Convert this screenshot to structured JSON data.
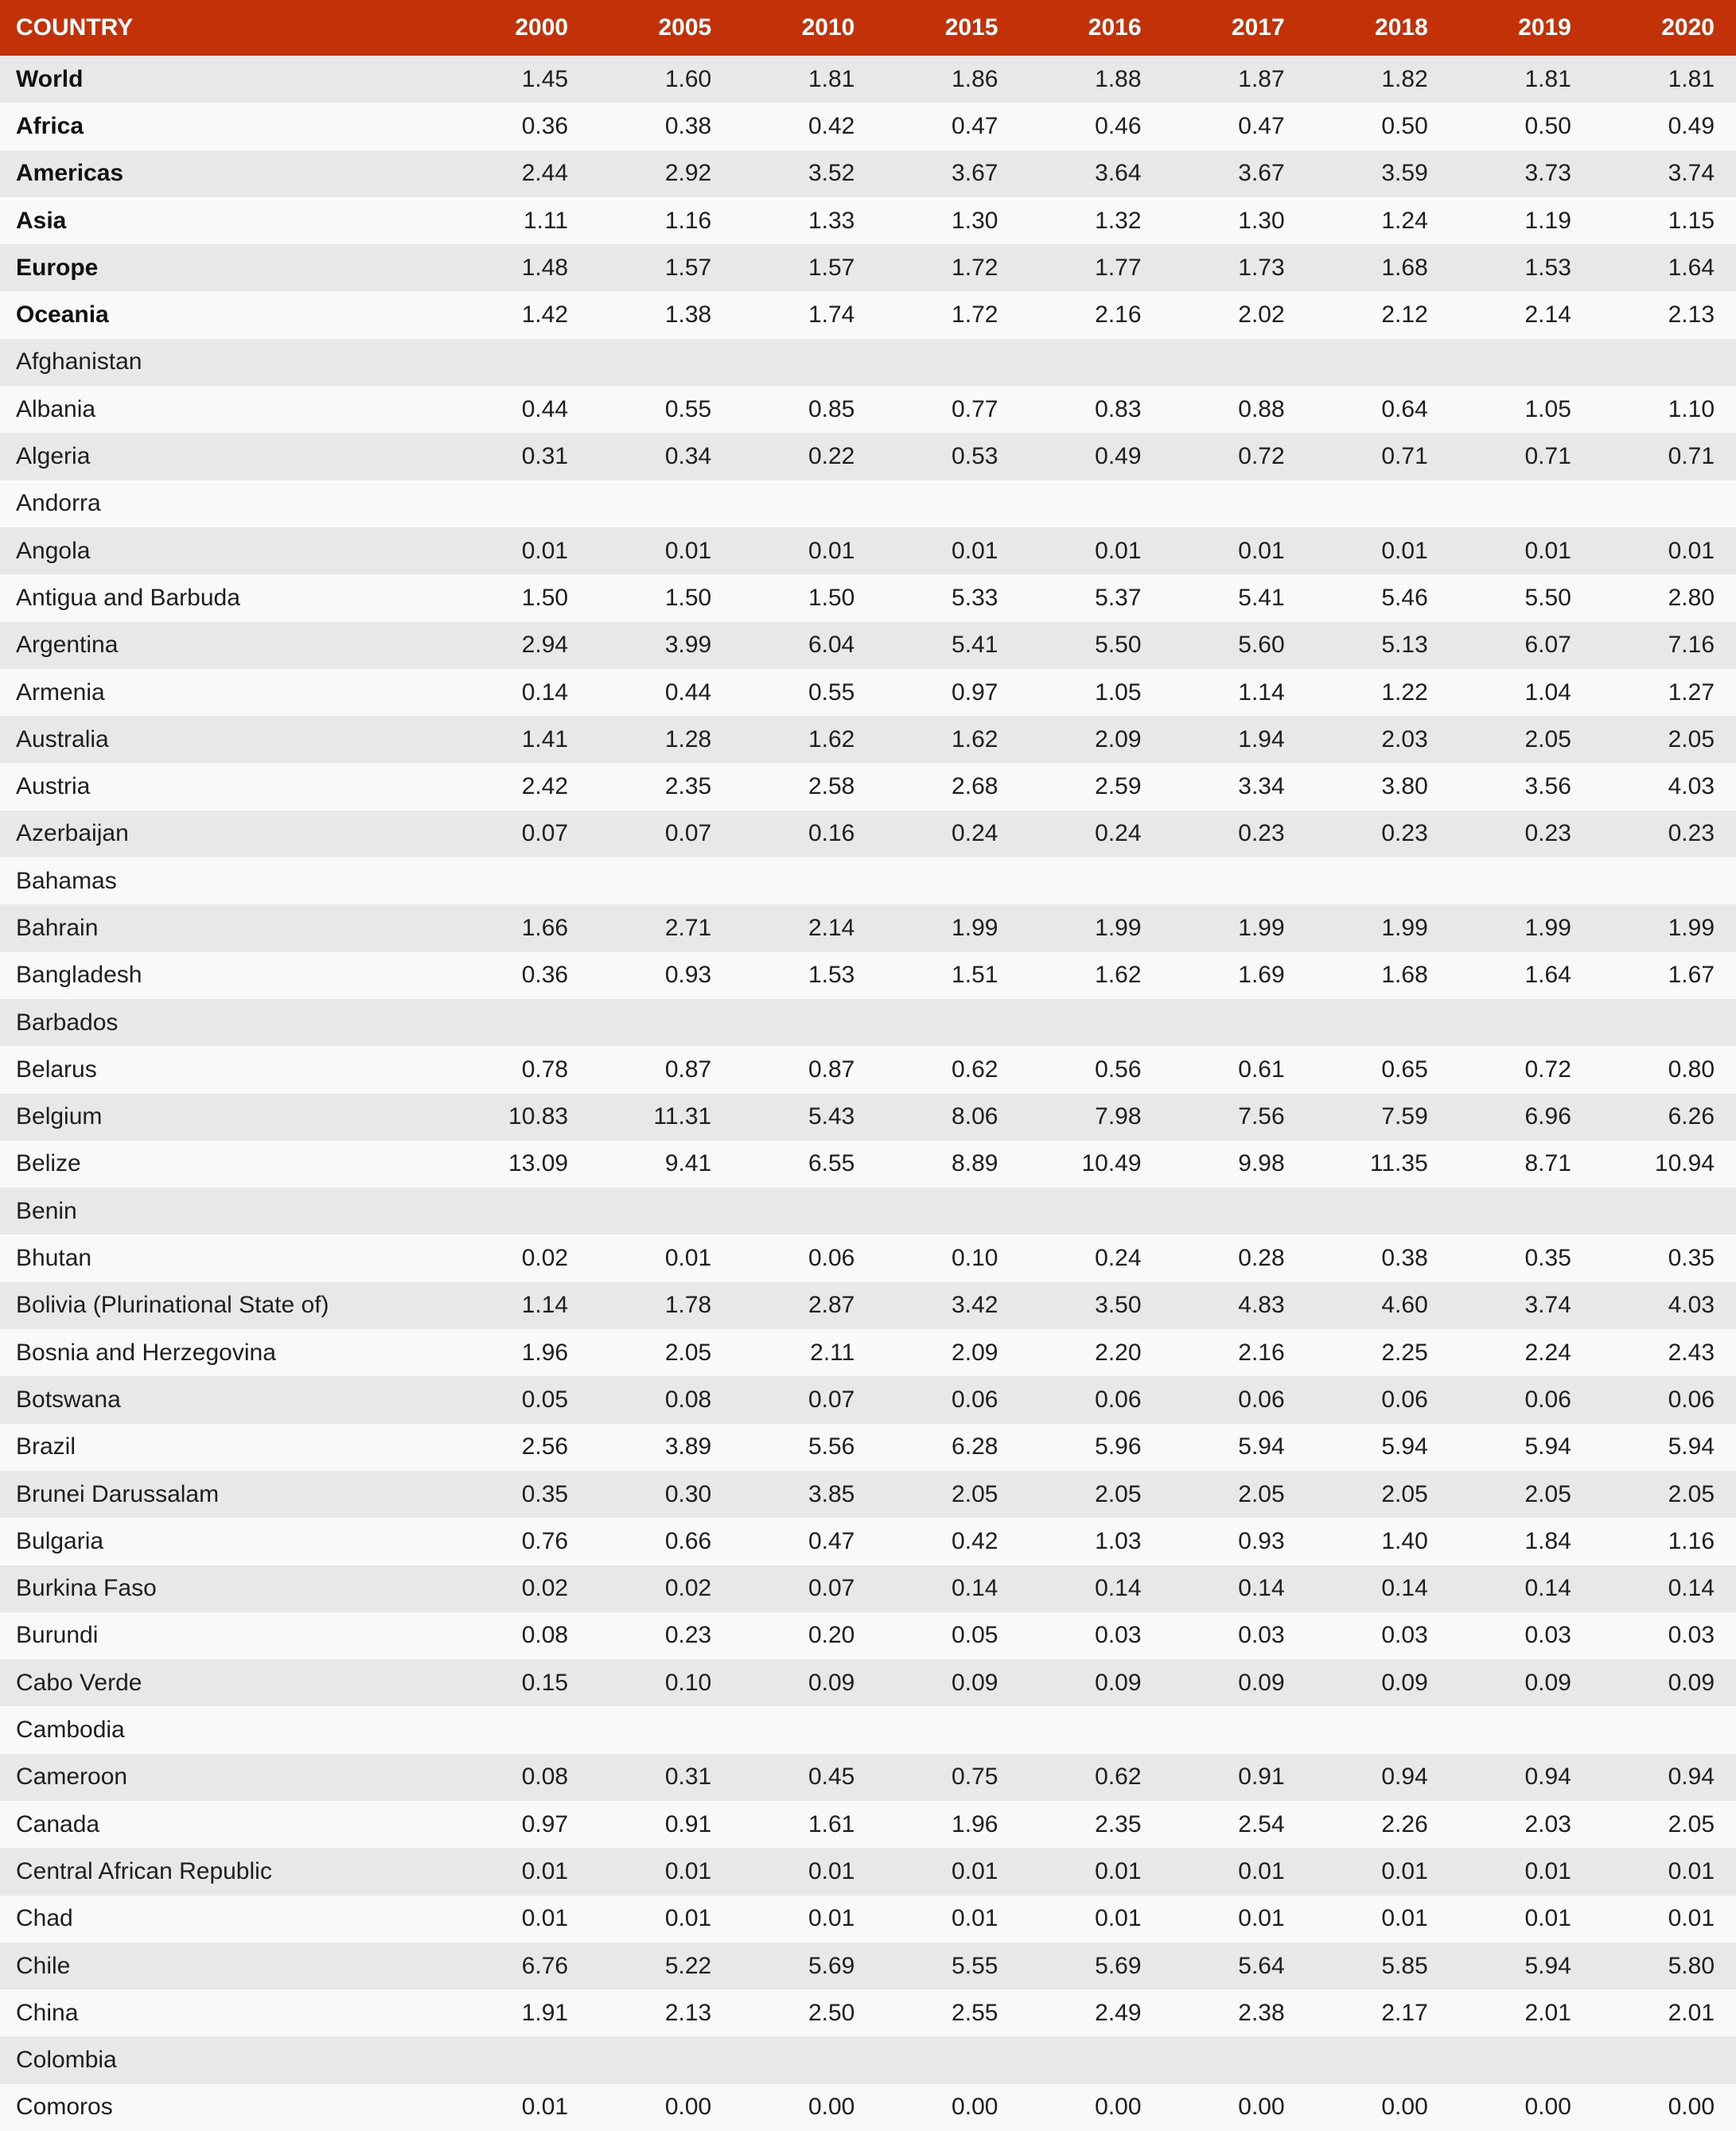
{
  "colors": {
    "header_bg": "#c23108",
    "header_text": "#ffffff",
    "row_stripe_gray": "#e8e8e8",
    "row_stripe_light": "#f9f9f9",
    "body_text": "#1e1e1e"
  },
  "chart_data": {
    "type": "table",
    "columns": [
      "COUNTRY",
      "2000",
      "2005",
      "2010",
      "2015",
      "2016",
      "2017",
      "2018",
      "2019",
      "2020"
    ],
    "rows": [
      {
        "name": "World",
        "bold": true,
        "values": [
          "1.45",
          "1.60",
          "1.81",
          "1.86",
          "1.88",
          "1.87",
          "1.82",
          "1.81",
          "1.81"
        ]
      },
      {
        "name": "Africa",
        "bold": true,
        "values": [
          "0.36",
          "0.38",
          "0.42",
          "0.47",
          "0.46",
          "0.47",
          "0.50",
          "0.50",
          "0.49"
        ]
      },
      {
        "name": "Americas",
        "bold": true,
        "values": [
          "2.44",
          "2.92",
          "3.52",
          "3.67",
          "3.64",
          "3.67",
          "3.59",
          "3.73",
          "3.74"
        ]
      },
      {
        "name": "Asia",
        "bold": true,
        "values": [
          "1.11",
          "1.16",
          "1.33",
          "1.30",
          "1.32",
          "1.30",
          "1.24",
          "1.19",
          "1.15"
        ]
      },
      {
        "name": "Europe",
        "bold": true,
        "values": [
          "1.48",
          "1.57",
          "1.57",
          "1.72",
          "1.77",
          "1.73",
          "1.68",
          "1.53",
          "1.64"
        ]
      },
      {
        "name": "Oceania",
        "bold": true,
        "values": [
          "1.42",
          "1.38",
          "1.74",
          "1.72",
          "2.16",
          "2.02",
          "2.12",
          "2.14",
          "2.13"
        ]
      },
      {
        "name": "Afghanistan",
        "bold": false,
        "values": [
          "",
          "",
          "",
          "",
          "",
          "",
          "",
          "",
          ""
        ]
      },
      {
        "name": "Albania",
        "bold": false,
        "values": [
          "0.44",
          "0.55",
          "0.85",
          "0.77",
          "0.83",
          "0.88",
          "0.64",
          "1.05",
          "1.10"
        ]
      },
      {
        "name": "Algeria",
        "bold": false,
        "values": [
          "0.31",
          "0.34",
          "0.22",
          "0.53",
          "0.49",
          "0.72",
          "0.71",
          "0.71",
          "0.71"
        ]
      },
      {
        "name": "Andorra",
        "bold": false,
        "values": [
          "",
          "",
          "",
          "",
          "",
          "",
          "",
          "",
          ""
        ]
      },
      {
        "name": "Angola",
        "bold": false,
        "values": [
          "0.01",
          "0.01",
          "0.01",
          "0.01",
          "0.01",
          "0.01",
          "0.01",
          "0.01",
          "0.01"
        ]
      },
      {
        "name": "Antigua and Barbuda",
        "bold": false,
        "values": [
          "1.50",
          "1.50",
          "1.50",
          "5.33",
          "5.37",
          "5.41",
          "5.46",
          "5.50",
          "2.80"
        ]
      },
      {
        "name": "Argentina",
        "bold": false,
        "values": [
          "2.94",
          "3.99",
          "6.04",
          "5.41",
          "5.50",
          "5.60",
          "5.13",
          "6.07",
          "7.16"
        ]
      },
      {
        "name": "Armenia",
        "bold": false,
        "values": [
          "0.14",
          "0.44",
          "0.55",
          "0.97",
          "1.05",
          "1.14",
          "1.22",
          "1.04",
          "1.27"
        ]
      },
      {
        "name": "Australia",
        "bold": false,
        "values": [
          "1.41",
          "1.28",
          "1.62",
          "1.62",
          "2.09",
          "1.94",
          "2.03",
          "2.05",
          "2.05"
        ]
      },
      {
        "name": "Austria",
        "bold": false,
        "values": [
          "2.42",
          "2.35",
          "2.58",
          "2.68",
          "2.59",
          "3.34",
          "3.80",
          "3.56",
          "4.03"
        ]
      },
      {
        "name": "Azerbaijan",
        "bold": false,
        "values": [
          "0.07",
          "0.07",
          "0.16",
          "0.24",
          "0.24",
          "0.23",
          "0.23",
          "0.23",
          "0.23"
        ]
      },
      {
        "name": "Bahamas",
        "bold": false,
        "values": [
          "",
          "",
          "",
          "",
          "",
          "",
          "",
          "",
          ""
        ]
      },
      {
        "name": "Bahrain",
        "bold": false,
        "values": [
          "1.66",
          "2.71",
          "2.14",
          "1.99",
          "1.99",
          "1.99",
          "1.99",
          "1.99",
          "1.99"
        ]
      },
      {
        "name": "Bangladesh",
        "bold": false,
        "values": [
          "0.36",
          "0.93",
          "1.53",
          "1.51",
          "1.62",
          "1.69",
          "1.68",
          "1.64",
          "1.67"
        ]
      },
      {
        "name": "Barbados",
        "bold": false,
        "values": [
          "",
          "",
          "",
          "",
          "",
          "",
          "",
          "",
          ""
        ]
      },
      {
        "name": "Belarus",
        "bold": false,
        "values": [
          "0.78",
          "0.87",
          "0.87",
          "0.62",
          "0.56",
          "0.61",
          "0.65",
          "0.72",
          "0.80"
        ]
      },
      {
        "name": "Belgium",
        "bold": false,
        "values": [
          "10.83",
          "11.31",
          "5.43",
          "8.06",
          "7.98",
          "7.56",
          "7.59",
          "6.96",
          "6.26"
        ]
      },
      {
        "name": "Belize",
        "bold": false,
        "values": [
          "13.09",
          "9.41",
          "6.55",
          "8.89",
          "10.49",
          "9.98",
          "11.35",
          "8.71",
          "10.94"
        ]
      },
      {
        "name": "Benin",
        "bold": false,
        "values": [
          "",
          "",
          "",
          "",
          "",
          "",
          "",
          "",
          ""
        ]
      },
      {
        "name": "Bhutan",
        "bold": false,
        "values": [
          "0.02",
          "0.01",
          "0.06",
          "0.10",
          "0.24",
          "0.28",
          "0.38",
          "0.35",
          "0.35"
        ]
      },
      {
        "name": "Bolivia (Plurinational State of)",
        "bold": false,
        "values": [
          "1.14",
          "1.78",
          "2.87",
          "3.42",
          "3.50",
          "4.83",
          "4.60",
          "3.74",
          "4.03"
        ]
      },
      {
        "name": "Bosnia and Herzegovina",
        "bold": false,
        "values": [
          "1.96",
          "2.05",
          "2.11",
          "2.09",
          "2.20",
          "2.16",
          "2.25",
          "2.24",
          "2.43"
        ]
      },
      {
        "name": "Botswana",
        "bold": false,
        "values": [
          "0.05",
          "0.08",
          "0.07",
          "0.06",
          "0.06",
          "0.06",
          "0.06",
          "0.06",
          "0.06"
        ]
      },
      {
        "name": "Brazil",
        "bold": false,
        "values": [
          "2.56",
          "3.89",
          "5.56",
          "6.28",
          "5.96",
          "5.94",
          "5.94",
          "5.94",
          "5.94"
        ]
      },
      {
        "name": "Brunei Darussalam",
        "bold": false,
        "values": [
          "0.35",
          "0.30",
          "3.85",
          "2.05",
          "2.05",
          "2.05",
          "2.05",
          "2.05",
          "2.05"
        ]
      },
      {
        "name": "Bulgaria",
        "bold": false,
        "values": [
          "0.76",
          "0.66",
          "0.47",
          "0.42",
          "1.03",
          "0.93",
          "1.40",
          "1.84",
          "1.16"
        ]
      },
      {
        "name": "Burkina Faso",
        "bold": false,
        "values": [
          "0.02",
          "0.02",
          "0.07",
          "0.14",
          "0.14",
          "0.14",
          "0.14",
          "0.14",
          "0.14"
        ]
      },
      {
        "name": "Burundi",
        "bold": false,
        "values": [
          "0.08",
          "0.23",
          "0.20",
          "0.05",
          "0.03",
          "0.03",
          "0.03",
          "0.03",
          "0.03"
        ]
      },
      {
        "name": "Cabo Verde",
        "bold": false,
        "values": [
          "0.15",
          "0.10",
          "0.09",
          "0.09",
          "0.09",
          "0.09",
          "0.09",
          "0.09",
          "0.09"
        ]
      },
      {
        "name": "Cambodia",
        "bold": false,
        "values": [
          "",
          "",
          "",
          "",
          "",
          "",
          "",
          "",
          ""
        ]
      },
      {
        "name": "Cameroon",
        "bold": false,
        "values": [
          "0.08",
          "0.31",
          "0.45",
          "0.75",
          "0.62",
          "0.91",
          "0.94",
          "0.94",
          "0.94"
        ]
      },
      {
        "name": "Canada",
        "bold": false,
        "values": [
          "0.97",
          "0.91",
          "1.61",
          "1.96",
          "2.35",
          "2.54",
          "2.26",
          "2.03",
          "2.05"
        ]
      },
      {
        "name": "Central African Republic",
        "bold": false,
        "values": [
          "0.01",
          "0.01",
          "0.01",
          "0.01",
          "0.01",
          "0.01",
          "0.01",
          "0.01",
          "0.01"
        ]
      },
      {
        "name": "Chad",
        "bold": false,
        "values": [
          "0.01",
          "0.01",
          "0.01",
          "0.01",
          "0.01",
          "0.01",
          "0.01",
          "0.01",
          "0.01"
        ]
      },
      {
        "name": "Chile",
        "bold": false,
        "values": [
          "6.76",
          "5.22",
          "5.69",
          "5.55",
          "5.69",
          "5.64",
          "5.85",
          "5.94",
          "5.80"
        ]
      },
      {
        "name": "China",
        "bold": false,
        "values": [
          "1.91",
          "2.13",
          "2.50",
          "2.55",
          "2.49",
          "2.38",
          "2.17",
          "2.01",
          "2.01"
        ]
      },
      {
        "name": "Colombia",
        "bold": false,
        "values": [
          "",
          "",
          "",
          "",
          "",
          "",
          "",
          "",
          ""
        ]
      },
      {
        "name": "Comoros",
        "bold": false,
        "values": [
          "0.01",
          "0.00",
          "0.00",
          "0.00",
          "0.00",
          "0.00",
          "0.00",
          "0.00",
          "0.00"
        ]
      }
    ]
  }
}
